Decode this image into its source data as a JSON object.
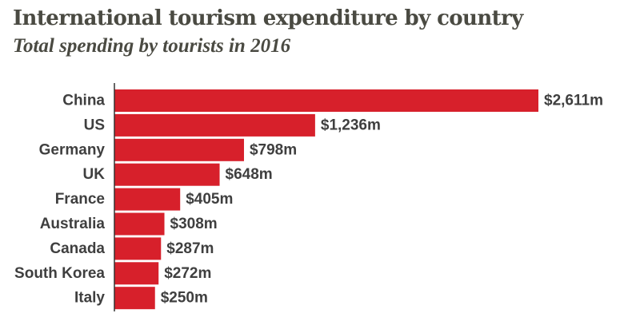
{
  "chart_data": {
    "type": "bar",
    "orientation": "horizontal",
    "title": "International tourism expenditure by country",
    "subtitle": "Total spending by tourists in 2016",
    "categories": [
      "China",
      "US",
      "Germany",
      "UK",
      "France",
      "Australia",
      "Canada",
      "South Korea",
      "Italy"
    ],
    "values": [
      2611,
      1236,
      798,
      648,
      405,
      308,
      287,
      272,
      250
    ],
    "value_labels": [
      "$2,611m",
      "$1,236m",
      "$798m",
      "$648m",
      "$405m",
      "$308m",
      "$287m",
      "$272m",
      "$250m"
    ],
    "xlabel": "",
    "ylabel": "",
    "xlim": [
      0,
      2611
    ],
    "grid": false,
    "legend": "none",
    "bar_color": "#d7202b"
  }
}
